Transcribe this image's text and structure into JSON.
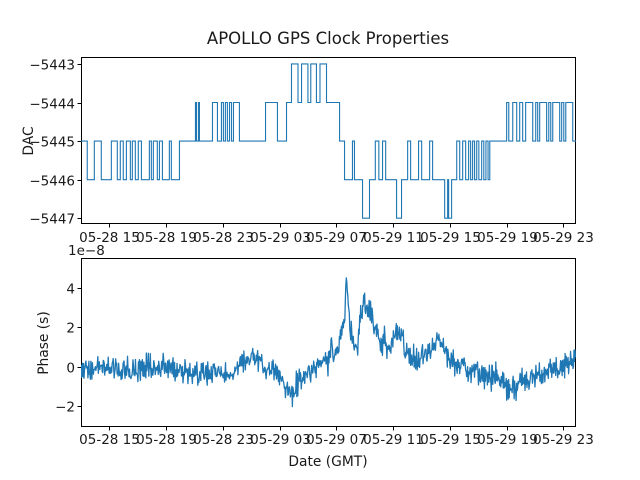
{
  "figure": {
    "title": "APOLLO GPS Clock Properties",
    "background": "#ffffff",
    "line_color": "#1f77b4",
    "axis_color": "#000000",
    "text_color": "#1a1a1a"
  },
  "chart_data": [
    {
      "type": "line",
      "id": "dac",
      "subplot": "top",
      "ylabel": "DAC",
      "xlabel": "",
      "style": "quantized-steps",
      "xlim": [
        0,
        34.9
      ],
      "ylim": [
        -5447.15,
        -5442.82
      ],
      "x_tick_positions": [
        2,
        6,
        10,
        14,
        18,
        22,
        26,
        30,
        34
      ],
      "x_tick_labels": [
        "05-28 15",
        "05-28 19",
        "05-28 23",
        "05-29 03",
        "05-29 07",
        "05-29 11",
        "05-29 15",
        "05-29 19",
        "05-29 23"
      ],
      "y_ticks": [
        -5443,
        -5444,
        -5445,
        -5446,
        -5447
      ],
      "y_tick_labels": [
        "−5443",
        "−5444",
        "−5445",
        "−5446",
        "−5447"
      ],
      "steps": [
        [
          0,
          -5445
        ],
        [
          0.44,
          -5446
        ],
        [
          0.94,
          -5445
        ],
        [
          1.43,
          -5446
        ],
        [
          2.14,
          -5445
        ],
        [
          2.56,
          -5446
        ],
        [
          2.77,
          -5445
        ],
        [
          2.98,
          -5446
        ],
        [
          3.2,
          -5445
        ],
        [
          3.48,
          -5446
        ],
        [
          3.62,
          -5445
        ],
        [
          3.83,
          -5446
        ],
        [
          4.04,
          -5445
        ],
        [
          4.26,
          -5446
        ],
        [
          4.82,
          -5445
        ],
        [
          4.96,
          -5446
        ],
        [
          5.1,
          -5445
        ],
        [
          5.38,
          -5446
        ],
        [
          5.53,
          -5445
        ],
        [
          5.74,
          -5446
        ],
        [
          6.23,
          -5445
        ],
        [
          6.37,
          -5446
        ],
        [
          6.94,
          -5445
        ],
        [
          8.07,
          -5444
        ],
        [
          8.14,
          -5445
        ],
        [
          8.28,
          -5444
        ],
        [
          8.35,
          -5445
        ],
        [
          9.27,
          -5444
        ],
        [
          9.62,
          -5445
        ],
        [
          9.9,
          -5444
        ],
        [
          10.04,
          -5445
        ],
        [
          10.18,
          -5444
        ],
        [
          10.32,
          -5445
        ],
        [
          10.47,
          -5444
        ],
        [
          10.61,
          -5445
        ],
        [
          10.75,
          -5444
        ],
        [
          11.17,
          -5445
        ],
        [
          13.01,
          -5444
        ],
        [
          13.85,
          -5445
        ],
        [
          14.49,
          -5444
        ],
        [
          14.84,
          -5443
        ],
        [
          15.3,
          -5444
        ],
        [
          15.55,
          -5443
        ],
        [
          16,
          -5444
        ],
        [
          16.2,
          -5443
        ],
        [
          16.6,
          -5444
        ],
        [
          16.85,
          -5443
        ],
        [
          17.31,
          -5444
        ],
        [
          18.23,
          -5445
        ],
        [
          18.58,
          -5446
        ],
        [
          19.14,
          -5445
        ],
        [
          19.28,
          -5446
        ],
        [
          19.85,
          -5447
        ],
        [
          20.34,
          -5446
        ],
        [
          20.75,
          -5445
        ],
        [
          21,
          -5446
        ],
        [
          21.26,
          -5445
        ],
        [
          21.48,
          -5446
        ],
        [
          22.25,
          -5447
        ],
        [
          22.6,
          -5446
        ],
        [
          23.03,
          -5445
        ],
        [
          23.24,
          -5446
        ],
        [
          23.8,
          -5445
        ],
        [
          24.02,
          -5446
        ],
        [
          24.58,
          -5445
        ],
        [
          24.79,
          -5446
        ],
        [
          25.64,
          -5447
        ],
        [
          25.85,
          -5446
        ],
        [
          25.92,
          -5447
        ],
        [
          26.13,
          -5446
        ],
        [
          26.49,
          -5445
        ],
        [
          26.7,
          -5446
        ],
        [
          26.91,
          -5445
        ],
        [
          27.12,
          -5446
        ],
        [
          27.33,
          -5445
        ],
        [
          27.47,
          -5446
        ],
        [
          27.61,
          -5445
        ],
        [
          27.75,
          -5446
        ],
        [
          27.9,
          -5445
        ],
        [
          28.05,
          -5446
        ],
        [
          28.25,
          -5445
        ],
        [
          28.4,
          -5446
        ],
        [
          28.55,
          -5445
        ],
        [
          28.7,
          -5446
        ],
        [
          28.82,
          -5445
        ],
        [
          30.01,
          -5444
        ],
        [
          30.16,
          -5445
        ],
        [
          30.44,
          -5444
        ],
        [
          30.72,
          -5445
        ],
        [
          30.93,
          -5444
        ],
        [
          31.14,
          -5445
        ],
        [
          31.35,
          -5444
        ],
        [
          31.85,
          -5445
        ],
        [
          32.06,
          -5444
        ],
        [
          32.2,
          -5445
        ],
        [
          32.34,
          -5444
        ],
        [
          32.83,
          -5445
        ],
        [
          32.98,
          -5444
        ],
        [
          33.12,
          -5445
        ],
        [
          33.26,
          -5444
        ],
        [
          33.75,
          -5445
        ],
        [
          33.89,
          -5444
        ],
        [
          34.04,
          -5445
        ],
        [
          34.18,
          -5444
        ],
        [
          34.67,
          -5445
        ]
      ]
    },
    {
      "type": "line",
      "id": "phase",
      "subplot": "bottom",
      "ylabel": "Phase (s)",
      "xlabel": "Date (GMT)",
      "offset_text": "1e−8",
      "style": "noisy-series",
      "xlim": [
        0,
        34.9
      ],
      "ylim": [
        -3.04,
        5.52
      ],
      "x_tick_positions": [
        2,
        6,
        10,
        14,
        18,
        22,
        26,
        30,
        34
      ],
      "x_tick_labels": [
        "05-28 15",
        "05-28 19",
        "05-28 23",
        "05-29 03",
        "05-29 07",
        "05-29 11",
        "05-29 15",
        "05-29 19",
        "05-29 23"
      ],
      "y_ticks": [
        4,
        2,
        0,
        -2
      ],
      "y_tick_labels": [
        "4",
        "2",
        "0",
        "−2"
      ],
      "units_multiplier": 1e-08,
      "noise_seed": 9001,
      "samples": 1000,
      "envelope": [
        [
          0,
          -0.1,
          0.55
        ],
        [
          2,
          0,
          0.5
        ],
        [
          3.5,
          -0.2,
          0.5
        ],
        [
          5,
          -0.05,
          0.55
        ],
        [
          6.5,
          -0.15,
          0.5
        ],
        [
          8,
          -0.3,
          0.5
        ],
        [
          9.5,
          -0.25,
          0.5
        ],
        [
          10.8,
          -0.35,
          0.45
        ],
        [
          11.5,
          0.45,
          0.55
        ],
        [
          12.3,
          0.5,
          0.5
        ],
        [
          13.1,
          -0.1,
          0.5
        ],
        [
          14.1,
          -0.55,
          0.5
        ],
        [
          14.8,
          -1.35,
          0.55
        ],
        [
          15.4,
          -0.6,
          0.5
        ],
        [
          16.2,
          -0.25,
          0.5
        ],
        [
          17.2,
          0.35,
          0.55
        ],
        [
          18.1,
          1.1,
          0.6
        ],
        [
          18.55,
          2.3,
          0.7
        ],
        [
          18.72,
          4.55,
          0.4
        ],
        [
          18.95,
          1.9,
          0.6
        ],
        [
          19.35,
          0.85,
          0.55
        ],
        [
          19.8,
          2.7,
          0.6
        ],
        [
          20.1,
          3.25,
          0.5
        ],
        [
          20.5,
          2.5,
          0.6
        ],
        [
          21.1,
          1.35,
          0.55
        ],
        [
          21.8,
          1.0,
          0.5
        ],
        [
          22.3,
          1.85,
          0.5
        ],
        [
          22.9,
          0.7,
          0.55
        ],
        [
          23.6,
          0.45,
          0.5
        ],
        [
          24.4,
          0.5,
          0.5
        ],
        [
          25.1,
          1.6,
          0.5
        ],
        [
          25.7,
          0.55,
          0.5
        ],
        [
          26.4,
          0.2,
          0.5
        ],
        [
          27.3,
          -0.2,
          0.5
        ],
        [
          28.3,
          -0.35,
          0.5
        ],
        [
          29.3,
          -0.55,
          0.55
        ],
        [
          30.1,
          -1.15,
          0.65
        ],
        [
          30.5,
          -1.1,
          0.65
        ],
        [
          31.1,
          -0.7,
          0.55
        ],
        [
          31.9,
          -0.45,
          0.5
        ],
        [
          32.7,
          -0.3,
          0.5
        ],
        [
          33.5,
          -0.15,
          0.5
        ],
        [
          34.4,
          0.05,
          0.5
        ],
        [
          34.9,
          0.55,
          0.35
        ]
      ],
      "notable_points": [
        {
          "t": 18.72,
          "value_1e8": 5.0,
          "note": "max spike"
        },
        {
          "t": 20.1,
          "value_1e8": 3.7,
          "note": "secondary peak"
        },
        {
          "t": 14.8,
          "value_1e8": -2.6,
          "note": "dip before rise"
        },
        {
          "t": 30.2,
          "value_1e8": -2.4,
          "note": "late dip"
        }
      ]
    }
  ]
}
